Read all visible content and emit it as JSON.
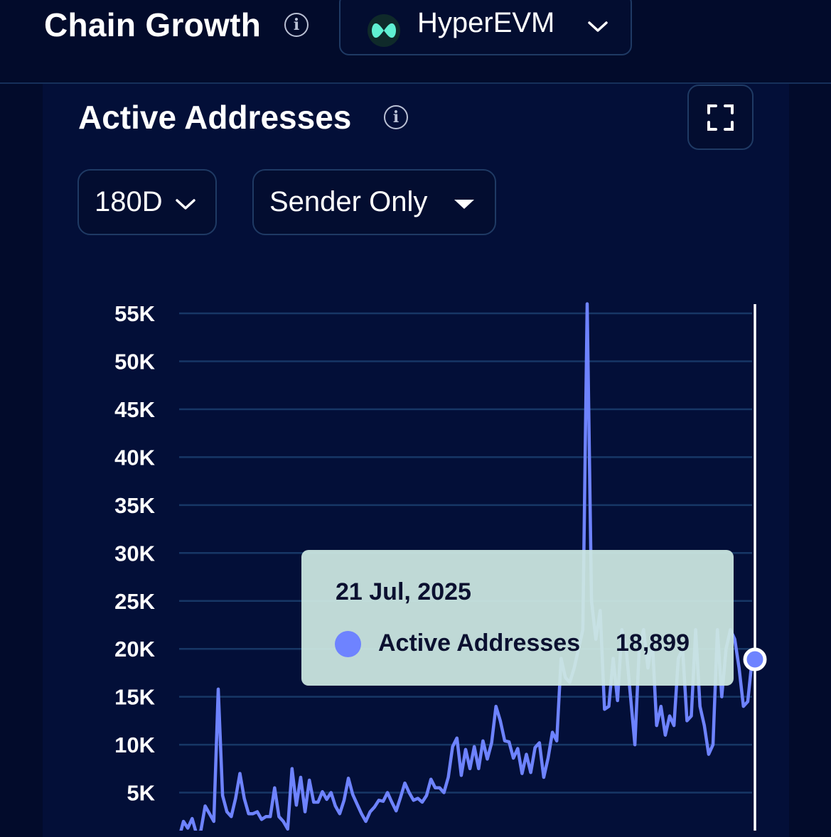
{
  "header": {
    "title": "Chain Growth",
    "chain_selector": {
      "value": "HyperEVM",
      "logo_color": "#5ff0d2"
    }
  },
  "card": {
    "title": "Active Addresses",
    "period_dropdown": {
      "value": "180D"
    },
    "mode_dropdown": {
      "value": "Sender Only"
    }
  },
  "colors": {
    "background": "#020b2b",
    "panel": "#030f38",
    "gridline": "#173766",
    "line": "#6e83ff",
    "crosshair": "#ffffff",
    "tooltip_bg": "#cee8e2"
  },
  "tooltip": {
    "date": "21 Jul, 2025",
    "series_label": "Active Addresses",
    "value": "18,899"
  },
  "chart_data": {
    "type": "line",
    "title": "",
    "xlabel": "",
    "ylabel": "",
    "ylim": [
      0,
      55000
    ],
    "yticks": [
      5000,
      10000,
      15000,
      20000,
      25000,
      30000,
      35000,
      40000,
      45000,
      50000,
      55000
    ],
    "ytick_labels": [
      "5K",
      "10K",
      "15K",
      "20K",
      "25K",
      "30K",
      "35K",
      "40K",
      "45K",
      "50K",
      "55K"
    ],
    "grid": true,
    "series": [
      {
        "name": "Active Addresses",
        "values": [
          300,
          2000,
          1300,
          2300,
          700,
          1000,
          3600,
          2800,
          2000,
          15800,
          4700,
          3000,
          2500,
          4400,
          7000,
          4400,
          2800,
          2800,
          3000,
          2200,
          2500,
          2500,
          5500,
          2500,
          2000,
          1200,
          7500,
          3700,
          6600,
          3000,
          6300,
          4000,
          4000,
          5100,
          4300,
          5000,
          3600,
          2800,
          4200,
          6500,
          4800,
          3800,
          2800,
          2000,
          3000,
          3500,
          4200,
          4100,
          5000,
          4000,
          3100,
          4500,
          6000,
          5000,
          4200,
          4400,
          4000,
          4700,
          6400,
          5500,
          5500,
          5000,
          6600,
          9800,
          10700,
          6800,
          9500,
          7500,
          9800,
          7500,
          10400,
          8500,
          10200,
          14000,
          12500,
          10400,
          10300,
          8600,
          9600,
          7000,
          9000,
          7100,
          9700,
          10200,
          6600,
          8600,
          11300,
          10400,
          19000,
          17000,
          16500,
          18000,
          20000,
          22000,
          56000,
          25000,
          21000,
          24000,
          13700,
          14000,
          19000,
          14600,
          22000,
          20000,
          15000,
          10000,
          20000,
          22000,
          18000,
          21000,
          12000,
          14000,
          11000,
          13000,
          12000,
          19000,
          20000,
          12500,
          13000,
          22000,
          14000,
          12000,
          9000,
          10000,
          22000,
          15000,
          20000,
          22000,
          21000,
          18000,
          14000,
          14500,
          18899
        ]
      }
    ],
    "highlight": {
      "label": "21 Jul, 2025",
      "value": 18899
    }
  }
}
